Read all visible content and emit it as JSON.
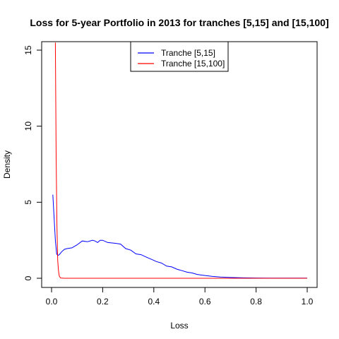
{
  "chart_data": {
    "type": "line",
    "title": "Loss for 5-year Portfolio in 2013 for tranches [5,15] and [15,100]",
    "xlabel": "Loss",
    "ylabel": "Density",
    "xlim": [
      0,
      1
    ],
    "ylim": [
      0,
      15
    ],
    "xticks": [
      0.0,
      0.2,
      0.4,
      0.6,
      0.8,
      1.0
    ],
    "xtick_labels": [
      "0.0",
      "0.2",
      "0.4",
      "0.6",
      "0.8",
      "1.0"
    ],
    "yticks": [
      0,
      5,
      10,
      15
    ],
    "ytick_labels": [
      "0",
      "5",
      "10",
      "15"
    ],
    "legend_placement": "top-center",
    "grid": false,
    "series": [
      {
        "name": "Tranche [5,15]",
        "color": "#0000ff",
        "x": [
          0.005,
          0.01,
          0.015,
          0.02,
          0.025,
          0.03,
          0.04,
          0.05,
          0.06,
          0.08,
          0.1,
          0.12,
          0.14,
          0.16,
          0.17,
          0.18,
          0.19,
          0.2,
          0.22,
          0.25,
          0.27,
          0.29,
          0.31,
          0.33,
          0.35,
          0.37,
          0.39,
          0.41,
          0.43,
          0.45,
          0.47,
          0.49,
          0.51,
          0.53,
          0.55,
          0.57,
          0.6,
          0.63,
          0.66,
          0.7,
          0.75,
          0.8,
          0.85,
          0.9,
          0.95,
          1.0
        ],
        "y": [
          5.5,
          4.0,
          2.5,
          1.6,
          1.5,
          1.55,
          1.75,
          1.9,
          1.95,
          2.0,
          2.2,
          2.45,
          2.4,
          2.5,
          2.45,
          2.35,
          2.5,
          2.5,
          2.35,
          2.3,
          2.25,
          1.95,
          1.85,
          1.6,
          1.55,
          1.4,
          1.25,
          1.1,
          1.0,
          0.8,
          0.75,
          0.6,
          0.5,
          0.4,
          0.35,
          0.25,
          0.18,
          0.12,
          0.08,
          0.05,
          0.03,
          0.02,
          0.01,
          0.01,
          0.01,
          0.01
        ]
      },
      {
        "name": "Tranche [15,100]",
        "color": "#ff0000",
        "x": [
          0.015,
          0.018,
          0.021,
          0.024,
          0.027,
          0.03,
          0.035,
          0.05,
          0.1,
          0.2,
          0.4,
          0.6,
          0.8,
          1.0
        ],
        "y": [
          15.5,
          8.0,
          3.5,
          1.2,
          0.5,
          0.15,
          0.02,
          0.0,
          0.0,
          0.0,
          0.0,
          0.0,
          0.0,
          0.0
        ]
      }
    ]
  }
}
